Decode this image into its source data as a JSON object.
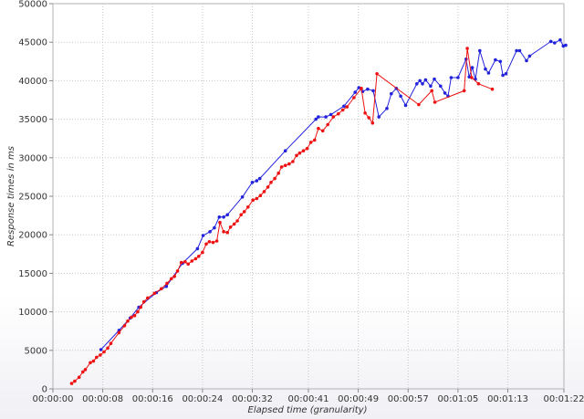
{
  "chart_data": {
    "type": "line",
    "xlabel": "Elapsed time (granularity)",
    "ylabel": "Response times in ms",
    "xlim": [
      0,
      82
    ],
    "ylim": [
      0,
      50000
    ],
    "x_ticks": [
      {
        "value": 0,
        "label": "00:00:00"
      },
      {
        "value": 8,
        "label": "00:00:08"
      },
      {
        "value": 16,
        "label": "00:00:16"
      },
      {
        "value": 24,
        "label": "00:00:24"
      },
      {
        "value": 32,
        "label": "00:00:32"
      },
      {
        "value": 41,
        "label": "00:00:41"
      },
      {
        "value": 49,
        "label": "00:00:49"
      },
      {
        "value": 57,
        "label": "00:00:57"
      },
      {
        "value": 65,
        "label": "00:01:05"
      },
      {
        "value": 73,
        "label": "00:01:13"
      },
      {
        "value": 82,
        "label": "00:01:22"
      }
    ],
    "y_ticks": [
      {
        "value": 0,
        "label": "0"
      },
      {
        "value": 5000,
        "label": "5000"
      },
      {
        "value": 10000,
        "label": "10000"
      },
      {
        "value": 15000,
        "label": "15000"
      },
      {
        "value": 20000,
        "label": "20000"
      },
      {
        "value": 25000,
        "label": "25000"
      },
      {
        "value": 30000,
        "label": "30000"
      },
      {
        "value": 35000,
        "label": "35000"
      },
      {
        "value": 40000,
        "label": "40000"
      },
      {
        "value": 45000,
        "label": "45000"
      },
      {
        "value": 50000,
        "label": "50000"
      }
    ],
    "grid": true,
    "series": [
      {
        "color": "#2222dd",
        "points": [
          [
            7.7,
            5100
          ],
          [
            10.6,
            7600
          ],
          [
            12.4,
            9200
          ],
          [
            13.8,
            10600
          ],
          [
            16.6,
            12500
          ],
          [
            18.2,
            13300
          ],
          [
            20.8,
            16300
          ],
          [
            23.2,
            18200
          ],
          [
            24.1,
            19900
          ],
          [
            25.2,
            20400
          ],
          [
            25.9,
            20900
          ],
          [
            26.7,
            22300
          ],
          [
            27.4,
            22300
          ],
          [
            28.0,
            22600
          ],
          [
            30.4,
            24900
          ],
          [
            32.0,
            26800
          ],
          [
            32.7,
            27000
          ],
          [
            33.2,
            27300
          ],
          [
            37.3,
            30900
          ],
          [
            42.2,
            35000
          ],
          [
            42.6,
            35300
          ],
          [
            43.8,
            35300
          ],
          [
            44.6,
            35600
          ],
          [
            46.7,
            36700
          ],
          [
            48.5,
            38500
          ],
          [
            49.1,
            39100
          ],
          [
            49.7,
            38600
          ],
          [
            50.5,
            38900
          ],
          [
            51.4,
            38700
          ],
          [
            52.3,
            35300
          ],
          [
            53.6,
            36400
          ],
          [
            54.3,
            38300
          ],
          [
            55.1,
            39000
          ],
          [
            55.8,
            38000
          ],
          [
            56.6,
            36800
          ],
          [
            58.4,
            39600
          ],
          [
            58.9,
            40000
          ],
          [
            59.3,
            39600
          ],
          [
            59.8,
            40100
          ],
          [
            60.6,
            39300
          ],
          [
            61.2,
            40200
          ],
          [
            62.2,
            39300
          ],
          [
            62.9,
            38400
          ],
          [
            63.4,
            38000
          ],
          [
            63.9,
            40400
          ],
          [
            65.0,
            40400
          ],
          [
            66.3,
            42800
          ],
          [
            66.8,
            40500
          ],
          [
            67.3,
            41700
          ],
          [
            67.8,
            40200
          ],
          [
            68.5,
            43900
          ],
          [
            69.4,
            41500
          ],
          [
            69.9,
            41000
          ],
          [
            71.0,
            42700
          ],
          [
            71.8,
            42500
          ],
          [
            72.2,
            40700
          ],
          [
            72.7,
            40900
          ],
          [
            74.4,
            43900
          ],
          [
            74.9,
            43900
          ],
          [
            76.0,
            42600
          ],
          [
            76.5,
            43200
          ],
          [
            79.9,
            45100
          ],
          [
            80.5,
            44900
          ],
          [
            81.4,
            45300
          ],
          [
            81.9,
            44500
          ],
          [
            82.3,
            44600
          ]
        ]
      },
      {
        "color": "#ee1111",
        "points": [
          [
            3.0,
            700
          ],
          [
            3.5,
            1000
          ],
          [
            4.2,
            1500
          ],
          [
            4.8,
            2200
          ],
          [
            5.2,
            2500
          ],
          [
            6.0,
            3400
          ],
          [
            6.5,
            3600
          ],
          [
            7.0,
            4100
          ],
          [
            7.6,
            4400
          ],
          [
            8.2,
            4800
          ],
          [
            8.8,
            5300
          ],
          [
            9.3,
            5900
          ],
          [
            10.6,
            7300
          ],
          [
            11.5,
            8200
          ],
          [
            12.0,
            8800
          ],
          [
            12.6,
            9300
          ],
          [
            13.1,
            9500
          ],
          [
            13.6,
            10000
          ],
          [
            14.1,
            10600
          ],
          [
            14.6,
            11300
          ],
          [
            15.2,
            11800
          ],
          [
            16.3,
            12400
          ],
          [
            17.4,
            13000
          ],
          [
            18.3,
            13700
          ],
          [
            19.0,
            14300
          ],
          [
            19.5,
            14600
          ],
          [
            20.0,
            15300
          ],
          [
            20.6,
            16400
          ],
          [
            21.2,
            16500
          ],
          [
            21.7,
            16200
          ],
          [
            22.3,
            16600
          ],
          [
            22.9,
            16900
          ],
          [
            23.4,
            17200
          ],
          [
            24.0,
            17700
          ],
          [
            24.6,
            18800
          ],
          [
            25.1,
            19100
          ],
          [
            25.7,
            19000
          ],
          [
            26.3,
            19200
          ],
          [
            26.8,
            21600
          ],
          [
            27.4,
            20400
          ],
          [
            28.0,
            20300
          ],
          [
            28.5,
            21000
          ],
          [
            29.1,
            21400
          ],
          [
            29.6,
            21800
          ],
          [
            30.2,
            22600
          ],
          [
            30.7,
            23000
          ],
          [
            31.3,
            23600
          ],
          [
            32.1,
            24500
          ],
          [
            32.7,
            24700
          ],
          [
            33.3,
            25100
          ],
          [
            33.9,
            25600
          ],
          [
            34.5,
            26200
          ],
          [
            35.0,
            26800
          ],
          [
            35.6,
            27300
          ],
          [
            36.2,
            28000
          ],
          [
            36.7,
            28800
          ],
          [
            37.3,
            29000
          ],
          [
            37.9,
            29200
          ],
          [
            38.5,
            29500
          ],
          [
            39.1,
            30300
          ],
          [
            39.6,
            30600
          ],
          [
            40.2,
            30900
          ],
          [
            40.8,
            31200
          ],
          [
            41.4,
            32000
          ],
          [
            42.0,
            32300
          ],
          [
            42.6,
            33800
          ],
          [
            43.3,
            33500
          ],
          [
            44.1,
            34300
          ],
          [
            45.0,
            35300
          ],
          [
            45.8,
            35700
          ],
          [
            46.5,
            36200
          ],
          [
            47.2,
            36600
          ],
          [
            48.3,
            37800
          ],
          [
            49.5,
            39000
          ],
          [
            50.1,
            35800
          ],
          [
            50.7,
            35200
          ],
          [
            51.3,
            34500
          ],
          [
            52.0,
            40900
          ],
          [
            58.7,
            36900
          ],
          [
            60.8,
            38700
          ],
          [
            61.3,
            37200
          ],
          [
            66.0,
            38700
          ],
          [
            66.5,
            44200
          ],
          [
            67.2,
            40400
          ],
          [
            68.3,
            39600
          ],
          [
            70.5,
            38900
          ]
        ]
      }
    ]
  }
}
